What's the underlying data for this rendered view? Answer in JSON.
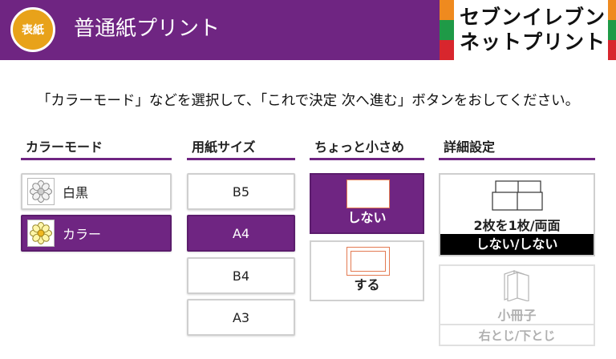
{
  "header": {
    "badge": "表紙",
    "title": "普通紙プリント",
    "logo_line1": "セブンイレブン",
    "logo_line2": "ネットプリント",
    "colors": {
      "brand": "#6f2582",
      "badge": "#e8a21a"
    }
  },
  "instruction": "「カラーモード」などを選択して、「これで決定 次へ進む」ボタンをおしてください。",
  "color_mode": {
    "heading": "カラーモード",
    "options": [
      {
        "label": "白黒",
        "icon": "flower-mono-icon",
        "selected": false
      },
      {
        "label": "カラー",
        "icon": "flower-color-icon",
        "selected": true
      }
    ]
  },
  "paper_size": {
    "heading": "用紙サイズ",
    "options": [
      {
        "label": "B5",
        "selected": false
      },
      {
        "label": "A4",
        "selected": true
      },
      {
        "label": "B4",
        "selected": false
      },
      {
        "label": "A3",
        "selected": false
      }
    ]
  },
  "shrink": {
    "heading": "ちょっと小さめ",
    "options": [
      {
        "label": "しない",
        "selected": true
      },
      {
        "label": "する",
        "selected": false
      }
    ]
  },
  "details": {
    "heading": "詳細設定",
    "two_in_one": {
      "label": "2枚を1枚/両面",
      "value": "しない/しない"
    },
    "booklet": {
      "label": "小冊子",
      "value": "右とじ/下とじ",
      "enabled": false
    }
  }
}
